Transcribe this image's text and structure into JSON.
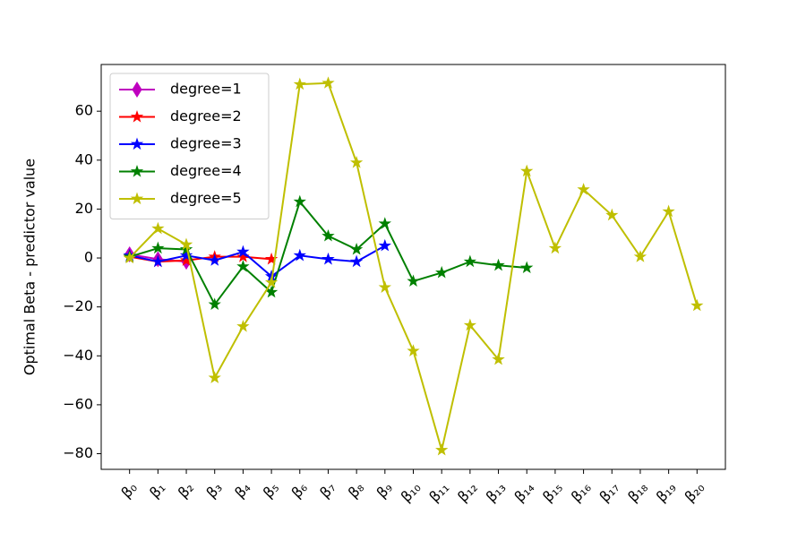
{
  "chart_data": {
    "type": "line",
    "ylabel": "Optimal Beta - predictor value",
    "categories": [
      "β₀",
      "β₁",
      "β₂",
      "β₃",
      "β₄",
      "β₅",
      "β₆",
      "β₇",
      "β₈",
      "β₉",
      "β₁₀",
      "β₁₁",
      "β₁₂",
      "β₁₃",
      "β₁₄",
      "β₁₅",
      "β₁₆",
      "β₁₇",
      "β₁₈",
      "β₁₉",
      "β₂₀"
    ],
    "series": [
      {
        "name": "degree=1",
        "color": "#bf00bf",
        "marker": "diamond",
        "values": [
          1.5,
          -0.5,
          -1.5,
          null,
          null,
          null,
          null,
          null,
          null,
          null,
          null,
          null,
          null,
          null,
          null,
          null,
          null,
          null,
          null,
          null,
          null
        ]
      },
      {
        "name": "degree=2",
        "color": "#ff0000",
        "marker": "star",
        "values": [
          0.5,
          -1.5,
          -1,
          0.5,
          0.5,
          -0.5,
          null,
          null,
          null,
          null,
          null,
          null,
          null,
          null,
          null,
          null,
          null,
          null,
          null,
          null,
          null
        ]
      },
      {
        "name": "degree=3",
        "color": "#0000ff",
        "marker": "star",
        "values": [
          1,
          -1.5,
          1,
          -1,
          2.5,
          -7.5,
          1,
          -0.5,
          -1.5,
          5,
          null,
          null,
          null,
          null,
          null,
          null,
          null,
          null,
          null,
          null,
          null
        ]
      },
      {
        "name": "degree=4",
        "color": "#008000",
        "marker": "star",
        "values": [
          0.5,
          4,
          3.5,
          -19,
          -3.5,
          -14,
          23,
          9,
          3.5,
          14,
          -9.5,
          -6,
          -1.5,
          -3,
          -4,
          null,
          null,
          null,
          null,
          null,
          null
        ]
      },
      {
        "name": "degree=5",
        "color": "#bfbf00",
        "marker": "star",
        "values": [
          0,
          12,
          5.5,
          -49,
          -28,
          -10,
          71,
          71.5,
          39,
          -12,
          -38,
          -78.5,
          -27.5,
          -41.5,
          35.5,
          4,
          28,
          17.5,
          0.5,
          19,
          -19.5
        ]
      }
    ],
    "ylim": [
      -86.4,
      79.1
    ],
    "yticks": [
      {
        "value": -80,
        "label": "−80"
      },
      {
        "value": -60,
        "label": "−60"
      },
      {
        "value": -40,
        "label": "−40"
      },
      {
        "value": -20,
        "label": "−20"
      },
      0,
      20,
      40,
      60
    ],
    "legend": "upper left",
    "grid": false
  }
}
